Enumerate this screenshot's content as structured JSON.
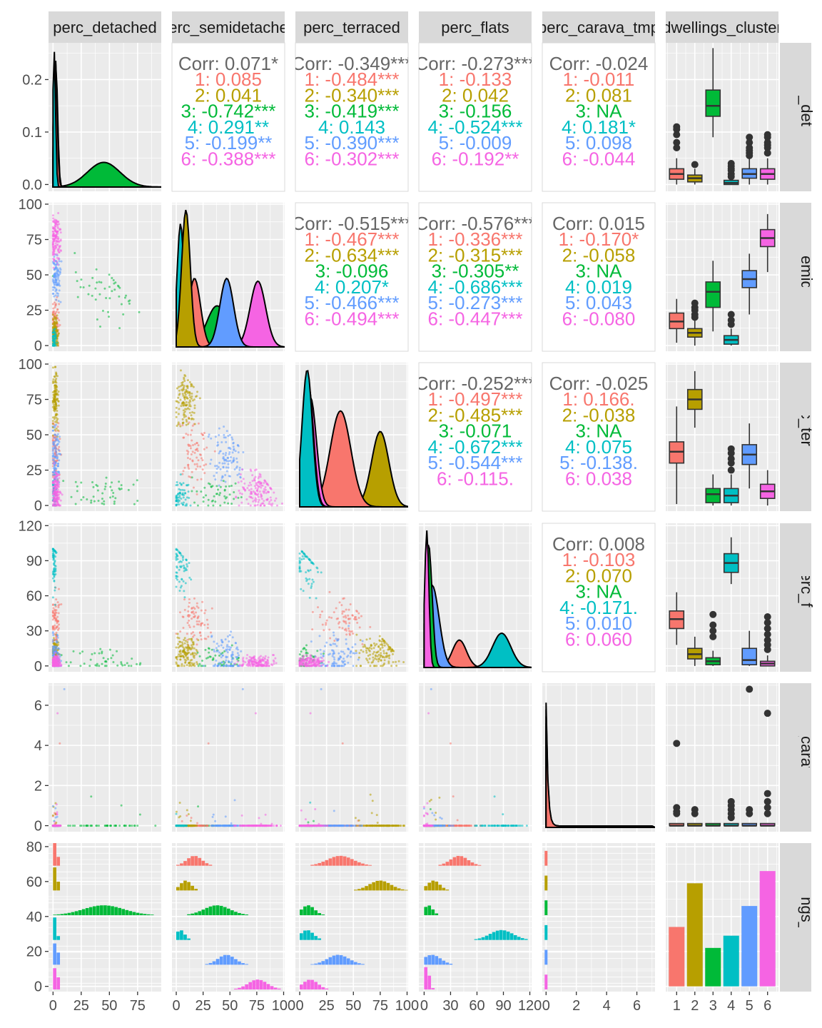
{
  "chart_data": {
    "type": "scatter-matrix",
    "variables": [
      "perc_detached",
      "perc_semidetached",
      "perc_terraced",
      "perc_flats",
      "perc_carava_tmp",
      "dwellings_cluster"
    ],
    "clusters": [
      "1",
      "2",
      "3",
      "4",
      "5",
      "6"
    ],
    "colors": [
      "#F8766D",
      "#B79F00",
      "#00BA38",
      "#00BFC4",
      "#619CFF",
      "#F564E3"
    ],
    "axis_ticks": {
      "perc_detached_x": [
        "0",
        "25",
        "50",
        "75"
      ],
      "perc_semidetached_x": [
        "0",
        "25",
        "50",
        "75",
        "100"
      ],
      "perc_terraced_x": [
        "0",
        "25",
        "50",
        "75",
        "100"
      ],
      "perc_flats_x": [
        "0",
        "30",
        "60",
        "90",
        "120"
      ],
      "perc_carava_tmp_x": [
        "0",
        "2",
        "4",
        "6"
      ],
      "dwellings_cluster_x": [
        "1",
        "2",
        "3",
        "4",
        "5",
        "6"
      ],
      "perc_detached_y": [
        "0.0",
        "0.1",
        "0.2"
      ],
      "perc_semidetached_y": [
        "0",
        "25",
        "50",
        "75",
        "100"
      ],
      "perc_terraced_y": [
        "0",
        "25",
        "50",
        "75",
        "100"
      ],
      "perc_flats_y": [
        "0",
        "30",
        "60",
        "90",
        "120"
      ],
      "perc_carava_tmp_y": [
        "0",
        "2",
        "4",
        "6"
      ],
      "dwellings_cluster_y": [
        "0",
        "20",
        "40",
        "60",
        "80"
      ]
    },
    "correlations": [
      {
        "row": "perc_detached",
        "col": "perc_semidetached",
        "overall": "Corr: 0.071*",
        "by_cluster": [
          "1: 0.085",
          "2: 0.041",
          "3: -0.742***",
          "4: 0.291**",
          "5: -0.199**",
          "6: -0.388***"
        ]
      },
      {
        "row": "perc_detached",
        "col": "perc_terraced",
        "overall": "Corr: -0.349***",
        "by_cluster": [
          "1: -0.484***",
          "2: -0.340***",
          "3: -0.419***",
          "4: 0.143",
          "5: -0.390***",
          "6: -0.302***"
        ]
      },
      {
        "row": "perc_detached",
        "col": "perc_flats",
        "overall": "Corr: -0.273***",
        "by_cluster": [
          "1: -0.133",
          "2: 0.042",
          "3: -0.156",
          "4: -0.524***",
          "5: -0.009",
          "6: -0.192**"
        ]
      },
      {
        "row": "perc_detached",
        "col": "perc_carava_tmp",
        "overall": "Corr: -0.024",
        "by_cluster": [
          "1: -0.011",
          "2: 0.081",
          "3:   NA",
          "4: 0.181*",
          "5: 0.098",
          "6: -0.044"
        ]
      },
      {
        "row": "perc_semidetached",
        "col": "perc_terraced",
        "overall": "Corr: -0.515***",
        "by_cluster": [
          "1: -0.467***",
          "2: -0.634***",
          "3: -0.096",
          "4: 0.207*",
          "5: -0.466***",
          "6: -0.494***"
        ]
      },
      {
        "row": "perc_semidetached",
        "col": "perc_flats",
        "overall": "Corr: -0.576***",
        "by_cluster": [
          "1: -0.336***",
          "2: -0.315***",
          "3: -0.305**",
          "4: -0.686***",
          "5: -0.273***",
          "6: -0.447***"
        ]
      },
      {
        "row": "perc_semidetached",
        "col": "perc_carava_tmp",
        "overall": "Corr: 0.015",
        "by_cluster": [
          "1: -0.170*",
          "2: -0.058",
          "3:   NA",
          "4: 0.019",
          "5: 0.043",
          "6: -0.080"
        ]
      },
      {
        "row": "perc_terraced",
        "col": "perc_flats",
        "overall": "Corr: -0.252***",
        "by_cluster": [
          "1: -0.497***",
          "2: -0.485***",
          "3: -0.071",
          "4: -0.672***",
          "5: -0.544***",
          "6: -0.115."
        ]
      },
      {
        "row": "perc_terraced",
        "col": "perc_carava_tmp",
        "overall": "Corr: -0.025",
        "by_cluster": [
          "1: 0.166.",
          "2: -0.038",
          "3:   NA",
          "4: 0.075",
          "5: -0.138.",
          "6: 0.038"
        ]
      },
      {
        "row": "perc_flats",
        "col": "perc_carava_tmp",
        "overall": "Corr: 0.008",
        "by_cluster": [
          "1: -0.103",
          "2: 0.070",
          "3:   NA",
          "4: -0.171.",
          "5: 0.010",
          "6: 0.060"
        ]
      }
    ],
    "boxplots": {
      "perc_detached": [
        {
          "cluster": "1",
          "q1": 0.01,
          "median": 0.02,
          "q3": 0.03,
          "lo": 0.0,
          "hi": 0.05
        },
        {
          "cluster": "2",
          "q1": 0.005,
          "median": 0.012,
          "q3": 0.018,
          "lo": 0.0,
          "hi": 0.03
        },
        {
          "cluster": "3",
          "q1": 0.13,
          "median": 0.15,
          "q3": 0.18,
          "lo": 0.09,
          "hi": 0.26
        },
        {
          "cluster": "4",
          "q1": 0.0,
          "median": 0.003,
          "q3": 0.008,
          "lo": 0.0,
          "hi": 0.018
        },
        {
          "cluster": "5",
          "q1": 0.012,
          "median": 0.02,
          "q3": 0.03,
          "lo": 0.0,
          "hi": 0.05
        },
        {
          "cluster": "6",
          "q1": 0.01,
          "median": 0.02,
          "q3": 0.03,
          "lo": 0.0,
          "hi": 0.05
        }
      ],
      "perc_semidetached": [
        {
          "cluster": "1",
          "q1": 12,
          "median": 17,
          "q3": 23,
          "lo": 2,
          "hi": 33
        },
        {
          "cluster": "2",
          "q1": 6,
          "median": 9,
          "q3": 12,
          "lo": 0,
          "hi": 19
        },
        {
          "cluster": "3",
          "q1": 27,
          "median": 38,
          "q3": 45,
          "lo": 10,
          "hi": 60
        },
        {
          "cluster": "4",
          "q1": 1,
          "median": 4,
          "q3": 7,
          "lo": 0,
          "hi": 12
        },
        {
          "cluster": "5",
          "q1": 41,
          "median": 47,
          "q3": 53,
          "lo": 22,
          "hi": 65
        },
        {
          "cluster": "6",
          "q1": 70,
          "median": 76,
          "q3": 82,
          "lo": 52,
          "hi": 93
        }
      ],
      "perc_terraced": [
        {
          "cluster": "1",
          "q1": 30,
          "median": 38,
          "q3": 45,
          "lo": 1,
          "hi": 70
        },
        {
          "cluster": "2",
          "q1": 68,
          "median": 75,
          "q3": 82,
          "lo": 55,
          "hi": 95
        },
        {
          "cluster": "3",
          "q1": 2,
          "median": 8,
          "q3": 12,
          "lo": 0,
          "hi": 22
        },
        {
          "cluster": "4",
          "q1": 2,
          "median": 7,
          "q3": 12,
          "lo": 0,
          "hi": 22
        },
        {
          "cluster": "5",
          "q1": 29,
          "median": 36,
          "q3": 43,
          "lo": 12,
          "hi": 58
        },
        {
          "cluster": "6",
          "q1": 5,
          "median": 10,
          "q3": 15,
          "lo": 0,
          "hi": 25
        }
      ],
      "perc_flats": [
        {
          "cluster": "1",
          "q1": 32,
          "median": 40,
          "q3": 47,
          "lo": 18,
          "hi": 63
        },
        {
          "cluster": "2",
          "q1": 6,
          "median": 10,
          "q3": 15,
          "lo": 0,
          "hi": 25
        },
        {
          "cluster": "3",
          "q1": 1,
          "median": 4,
          "q3": 7,
          "lo": 0,
          "hi": 13
        },
        {
          "cluster": "4",
          "q1": 80,
          "median": 88,
          "q3": 96,
          "lo": 70,
          "hi": 110
        },
        {
          "cluster": "5",
          "q1": 1,
          "median": 5,
          "q3": 15,
          "lo": 0,
          "hi": 30
        },
        {
          "cluster": "6",
          "q1": 0,
          "median": 2,
          "q3": 4,
          "lo": 0,
          "hi": 9
        }
      ],
      "perc_carava_tmp": [
        {
          "cluster": "1",
          "q1": 0,
          "median": 0,
          "q3": 0,
          "lo": 0,
          "hi": 0
        },
        {
          "cluster": "2",
          "q1": 0,
          "median": 0,
          "q3": 0,
          "lo": 0,
          "hi": 0
        },
        {
          "cluster": "3",
          "q1": 0,
          "median": 0,
          "q3": 0,
          "lo": 0,
          "hi": 0
        },
        {
          "cluster": "4",
          "q1": 0,
          "median": 0,
          "q3": 0,
          "lo": 0,
          "hi": 0
        },
        {
          "cluster": "5",
          "q1": 0,
          "median": 0,
          "q3": 0,
          "lo": 0,
          "hi": 0
        },
        {
          "cluster": "6",
          "q1": 0,
          "median": 0,
          "q3": 0,
          "lo": 0,
          "hi": 0
        }
      ]
    },
    "cluster_counts": [
      34,
      59,
      22,
      29,
      46,
      66
    ]
  }
}
